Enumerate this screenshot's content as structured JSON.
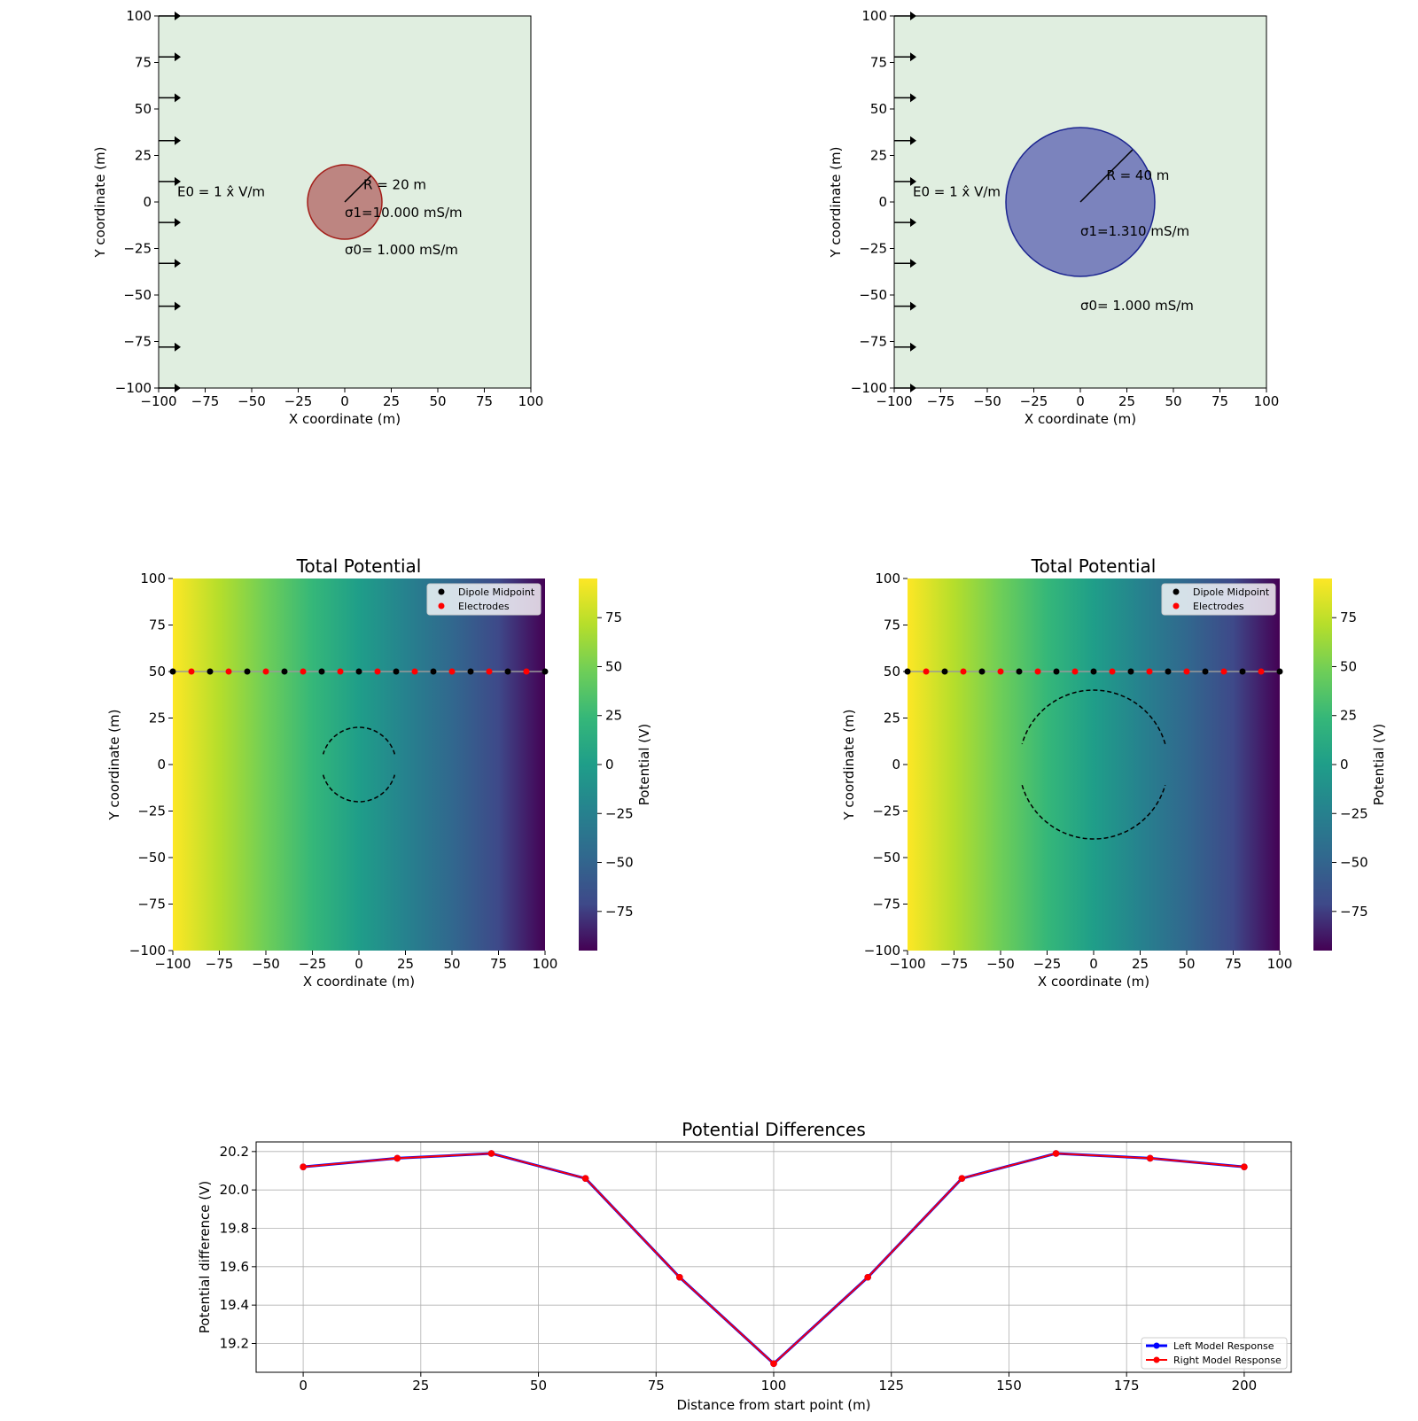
{
  "colors": {
    "background_field": "#e0eee0",
    "left_sphere_fill": "#bd8581",
    "left_sphere_edge": "#a31f1a",
    "right_sphere_fill": "#7b83bd",
    "right_sphere_edge": "#1c2590",
    "left_response": "#0000ff",
    "right_response": "#ff0000",
    "dipole_midpoint": "#000000",
    "electrodes": "#ff0000"
  },
  "chart_data": [
    {
      "id": "left_model",
      "type": "scatter",
      "xlabel": "X coordinate (m)",
      "ylabel": "Y coordinate (m)",
      "xlim": [
        -100,
        100
      ],
      "ylim": [
        -100,
        100
      ],
      "xticks": [
        -100,
        -75,
        -50,
        -25,
        0,
        25,
        50,
        75,
        100
      ],
      "yticks": [
        -100,
        -75,
        -50,
        -25,
        0,
        25,
        50,
        75,
        100
      ],
      "field_arrows_y": [
        100,
        78,
        56,
        33,
        11,
        -11,
        -33,
        -56,
        -78,
        -100
      ],
      "field_arrow_x": [
        -100,
        -90
      ],
      "sphere": {
        "center": [
          0,
          0
        ],
        "radius": 20
      },
      "radius_line": [
        [
          0,
          0
        ],
        [
          14,
          14
        ]
      ],
      "annotations": {
        "field": "E0 = 1 x̂ V/m",
        "field_pos": [
          -90,
          3
        ],
        "radius": "R = 20 m",
        "radius_pos": [
          10,
          7
        ],
        "sigma1": "σ1=10.000 mS/m",
        "sigma1_pos": [
          0,
          -8
        ],
        "sigma0": "σ0= 1.000 mS/m",
        "sigma0_pos": [
          0,
          -28
        ]
      }
    },
    {
      "id": "right_model",
      "type": "scatter",
      "xlabel": "X coordinate (m)",
      "ylabel": "Y coordinate (m)",
      "xlim": [
        -100,
        100
      ],
      "ylim": [
        -100,
        100
      ],
      "xticks": [
        -100,
        -75,
        -50,
        -25,
        0,
        25,
        50,
        75,
        100
      ],
      "yticks": [
        -100,
        -75,
        -50,
        -25,
        0,
        25,
        50,
        75,
        100
      ],
      "field_arrows_y": [
        100,
        78,
        56,
        33,
        11,
        -11,
        -33,
        -56,
        -78,
        -100
      ],
      "field_arrow_x": [
        -100,
        -90
      ],
      "sphere": {
        "center": [
          0,
          0
        ],
        "radius": 40
      },
      "radius_line": [
        [
          0,
          0
        ],
        [
          28,
          28
        ]
      ],
      "annotations": {
        "field": "E0 = 1 x̂ V/m",
        "field_pos": [
          -90,
          3
        ],
        "radius": "R = 40 m",
        "radius_pos": [
          14,
          12
        ],
        "sigma1": "σ1=1.310 mS/m",
        "sigma1_pos": [
          0,
          -18
        ],
        "sigma0": "σ0= 1.000 mS/m",
        "sigma0_pos": [
          0,
          -58
        ]
      }
    },
    {
      "id": "left_potential",
      "type": "heatmap",
      "title": "Total Potential",
      "xlabel": "X coordinate (m)",
      "ylabel": "Y coordinate (m)",
      "xlim": [
        -100,
        100
      ],
      "ylim": [
        -100,
        100
      ],
      "xticks": [
        -100,
        -75,
        -50,
        -25,
        0,
        25,
        50,
        75,
        100
      ],
      "yticks": [
        -100,
        -75,
        -50,
        -25,
        0,
        25,
        50,
        75,
        100
      ],
      "potential_range": [
        -95,
        95
      ],
      "colorbar_label": "Potential (V)",
      "colorbar_ticks": [
        75,
        50,
        25,
        0,
        -25,
        -50,
        -75
      ],
      "survey_line_y": 50,
      "dipole_midpoints_x": [
        -100,
        -80,
        -60,
        -40,
        -20,
        0,
        20,
        40,
        60,
        80,
        100
      ],
      "electrodes_x": [
        -90,
        -70,
        -50,
        -30,
        -10,
        10,
        30,
        50,
        70,
        90
      ],
      "sphere_outline": {
        "center": [
          0,
          0
        ],
        "radius": 20
      },
      "legend": [
        "Dipole Midpoint",
        "Electrodes"
      ],
      "legend_position": "top-right"
    },
    {
      "id": "right_potential",
      "type": "heatmap",
      "title": "Total Potential",
      "xlabel": "X coordinate (m)",
      "ylabel": "Y coordinate (m)",
      "xlim": [
        -100,
        100
      ],
      "ylim": [
        -100,
        100
      ],
      "xticks": [
        -100,
        -75,
        -50,
        -25,
        0,
        25,
        50,
        75,
        100
      ],
      "yticks": [
        -100,
        -75,
        -50,
        -25,
        0,
        25,
        50,
        75,
        100
      ],
      "potential_range": [
        -95,
        95
      ],
      "colorbar_label": "Potential (V)",
      "colorbar_ticks": [
        75,
        50,
        25,
        0,
        -25,
        -50,
        -75
      ],
      "survey_line_y": 50,
      "dipole_midpoints_x": [
        -100,
        -80,
        -60,
        -40,
        -20,
        0,
        20,
        40,
        60,
        80,
        100
      ],
      "electrodes_x": [
        -90,
        -70,
        -50,
        -30,
        -10,
        10,
        30,
        50,
        70,
        90
      ],
      "sphere_outline": {
        "center": [
          0,
          0
        ],
        "radius": 40
      },
      "legend": [
        "Dipole Midpoint",
        "Electrodes"
      ],
      "legend_position": "top-right"
    },
    {
      "id": "potential_differences",
      "type": "line",
      "title": "Potential Differences",
      "xlabel": "Distance from start point (m)",
      "ylabel": "Potential difference (V)",
      "xlim": [
        -10,
        210
      ],
      "ylim": [
        19.05,
        20.25
      ],
      "xticks": [
        0,
        25,
        50,
        75,
        100,
        125,
        150,
        175,
        200
      ],
      "yticks": [
        19.2,
        19.4,
        19.6,
        19.8,
        20.0,
        20.2
      ],
      "grid": true,
      "legend_position": "bottom-right",
      "x": [
        0,
        20,
        40,
        60,
        80,
        100,
        120,
        140,
        160,
        180,
        200
      ],
      "series": [
        {
          "name": "Left Model Response",
          "values": [
            20.12,
            20.165,
            20.19,
            20.06,
            19.545,
            19.095,
            19.545,
            20.06,
            20.19,
            20.165,
            20.12
          ]
        },
        {
          "name": "Right Model Response",
          "values": [
            20.12,
            20.165,
            20.19,
            20.06,
            19.545,
            19.095,
            19.545,
            20.06,
            20.19,
            20.165,
            20.12
          ]
        }
      ]
    }
  ]
}
